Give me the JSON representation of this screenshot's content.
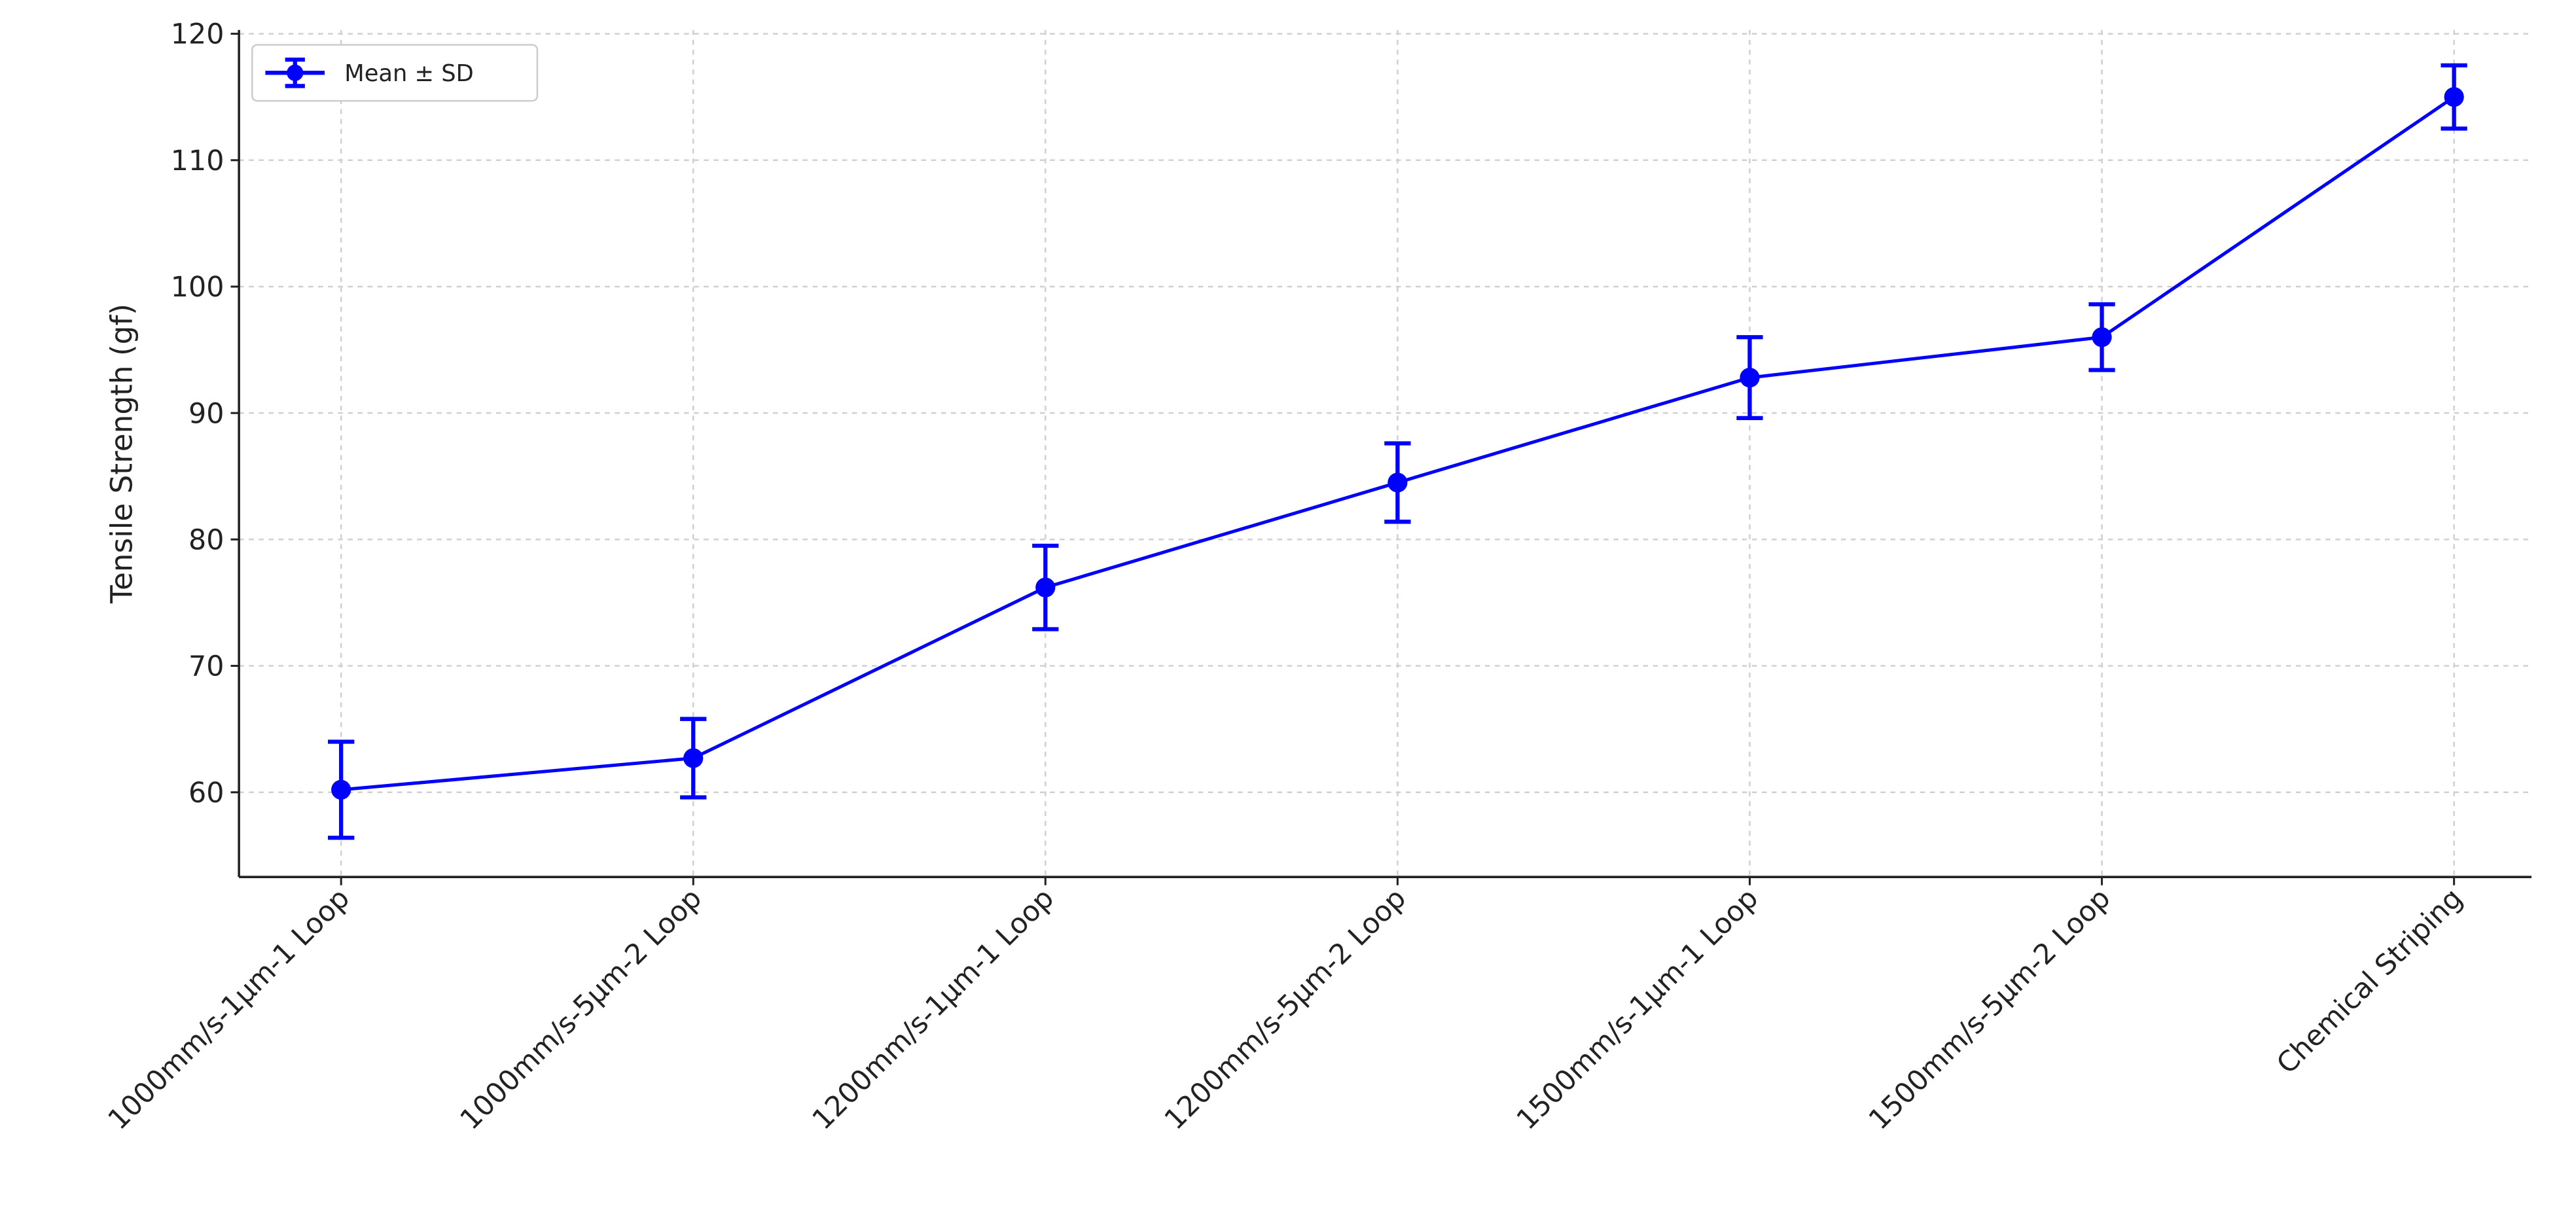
{
  "chart_data": {
    "type": "line",
    "y_label": "Tensile Strength (gf)",
    "categories": [
      "1000mm/s-1μm-1 Loop",
      "1000mm/s-5μm-2 Loop",
      "1200mm/s-1μm-1 Loop",
      "1200mm/s-5μm-2 Loop",
      "1500mm/s-1μm-1 Loop",
      "1500mm/s-5μm-2 Loop",
      "Chemical Striping"
    ],
    "series": [
      {
        "name": "Mean ± SD",
        "color": "#0000ff",
        "values": [
          60.2,
          62.7,
          76.2,
          84.5,
          92.8,
          96.0,
          115.0
        ],
        "errors": [
          3.8,
          3.1,
          3.3,
          3.1,
          3.2,
          2.6,
          2.5
        ]
      }
    ],
    "ylim": [
      53.3,
      120.3
    ],
    "yticks": [
      60,
      70,
      80,
      90,
      100,
      110,
      120
    ],
    "grid": true,
    "legend": "upper left"
  }
}
